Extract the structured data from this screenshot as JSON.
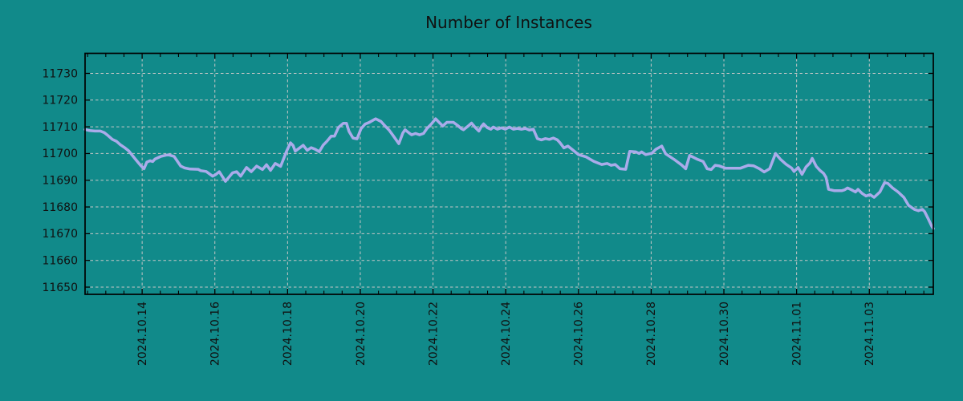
{
  "title": "Number of Instances",
  "colors": {
    "background": "#118A8A",
    "line": "#AAABEA",
    "grid": "#C6C6C6",
    "axis": "#000000",
    "text": "#111111"
  },
  "chart_data": {
    "type": "line",
    "title": "Number of Instances",
    "series_name": "instances",
    "x_unit": "days since 2024-10-14 00:00",
    "xlim": [
      -1.57,
      21.76
    ],
    "ylim": [
      11647.3,
      11737.5
    ],
    "grid": "dashed",
    "legend": "none",
    "y_ticks": [
      11650,
      11660,
      11670,
      11680,
      11690,
      11700,
      11710,
      11720,
      11730
    ],
    "x_major_tick_positions": [
      0,
      2,
      4,
      6,
      8,
      10,
      12,
      14,
      16,
      18,
      20
    ],
    "x_major_tick_labels": [
      "2024.10.14",
      "2024.10.16",
      "2024.10.18",
      "2024.10.20",
      "2024.10.22",
      "2024.10.24",
      "2024.10.26",
      "2024.10.28",
      "2024.10.30",
      "2024.11.01",
      "2024.11.03"
    ],
    "x_minor_tick_step": 0.5,
    "x": [
      -1.57,
      -1.45,
      -1.3,
      -1.15,
      -1.04,
      -0.93,
      -0.82,
      -0.71,
      -0.6,
      -0.49,
      -0.37,
      -0.28,
      -0.15,
      -0.04,
      0.05,
      0.13,
      0.22,
      0.29,
      0.35,
      0.51,
      0.66,
      0.73,
      0.88,
      1.06,
      1.17,
      1.32,
      1.54,
      1.61,
      1.76,
      1.94,
      2.01,
      2.12,
      2.29,
      2.49,
      2.6,
      2.71,
      2.87,
      3.0,
      3.15,
      3.31,
      3.42,
      3.53,
      3.66,
      3.81,
      3.97,
      4.08,
      4.15,
      4.21,
      4.32,
      4.43,
      4.54,
      4.65,
      4.76,
      4.87,
      4.98,
      5.09,
      5.2,
      5.29,
      5.4,
      5.53,
      5.62,
      5.69,
      5.8,
      5.91,
      6.02,
      6.13,
      6.24,
      6.42,
      6.57,
      6.68,
      6.79,
      6.9,
      7.06,
      7.17,
      7.23,
      7.34,
      7.41,
      7.52,
      7.63,
      7.74,
      7.83,
      7.95,
      8.07,
      8.18,
      8.27,
      8.38,
      8.56,
      8.68,
      8.78,
      8.84,
      8.95,
      9.06,
      9.17,
      9.26,
      9.33,
      9.39,
      9.5,
      9.59,
      9.66,
      9.77,
      9.88,
      9.99,
      10.1,
      10.21,
      10.32,
      10.43,
      10.54,
      10.65,
      10.76,
      10.87,
      10.98,
      11.09,
      11.2,
      11.31,
      11.42,
      11.49,
      11.6,
      11.71,
      11.82,
      11.93,
      12.0,
      12.2,
      12.42,
      12.64,
      12.79,
      12.9,
      13.01,
      13.14,
      13.3,
      13.41,
      13.58,
      13.67,
      13.74,
      13.85,
      14.02,
      14.13,
      14.29,
      14.4,
      14.62,
      14.84,
      14.95,
      15.06,
      15.28,
      15.43,
      15.54,
      15.65,
      15.76,
      15.87,
      16.05,
      16.27,
      16.45,
      16.67,
      16.82,
      16.98,
      17.11,
      17.26,
      17.42,
      17.55,
      17.71,
      17.86,
      17.93,
      18.04,
      18.15,
      18.26,
      18.37,
      18.43,
      18.54,
      18.65,
      18.74,
      18.81,
      18.88,
      19.03,
      19.25,
      19.32,
      19.4,
      19.51,
      19.62,
      19.69,
      19.8,
      19.91,
      20.02,
      20.13,
      20.29,
      20.42,
      20.51,
      20.64,
      20.79,
      20.95,
      21.08,
      21.24,
      21.35,
      21.46,
      21.52,
      21.63,
      21.72,
      21.76
    ],
    "values": [
      11709.0,
      11708.6,
      11708.4,
      11708.4,
      11707.8,
      11706.6,
      11705.3,
      11704.6,
      11703.3,
      11702.3,
      11701.0,
      11699.5,
      11697.3,
      11695.5,
      11694.3,
      11696.8,
      11697.3,
      11697.0,
      11697.9,
      11698.9,
      11699.4,
      11699.5,
      11698.9,
      11695.3,
      11694.6,
      11694.2,
      11694.1,
      11693.6,
      11693.3,
      11691.5,
      11692.0,
      11693.2,
      11689.6,
      11692.8,
      11693.2,
      11691.5,
      11694.8,
      11693.2,
      11695.3,
      11694.0,
      11695.8,
      11693.7,
      11696.3,
      11695.2,
      11700.8,
      11704.0,
      11703.0,
      11700.9,
      11702.0,
      11703.1,
      11701.2,
      11702.2,
      11701.6,
      11700.7,
      11703.2,
      11704.7,
      11706.5,
      11706.5,
      11709.8,
      11711.3,
      11711.3,
      11708.3,
      11705.8,
      11705.5,
      11709.3,
      11711.0,
      11711.6,
      11713.0,
      11712.0,
      11710.3,
      11708.8,
      11706.8,
      11703.7,
      11707.7,
      11708.9,
      11707.7,
      11707.0,
      11707.5,
      11707.0,
      11707.5,
      11709.3,
      11711.0,
      11713.0,
      11711.5,
      11710.3,
      11711.7,
      11711.7,
      11710.5,
      11709.3,
      11708.9,
      11710.1,
      11711.4,
      11709.6,
      11708.4,
      11710.1,
      11711.1,
      11709.6,
      11709.1,
      11709.9,
      11709.1,
      11709.6,
      11709.1,
      11709.9,
      11709.1,
      11709.4,
      11709.1,
      11709.4,
      11708.8,
      11709.1,
      11705.6,
      11705.1,
      11705.6,
      11705.3,
      11705.8,
      11705.1,
      11704.1,
      11702.1,
      11702.8,
      11701.6,
      11700.4,
      11699.6,
      11698.8,
      11697.1,
      11695.9,
      11696.3,
      11695.6,
      11695.9,
      11694.3,
      11694.1,
      11700.8,
      11700.6,
      11700.0,
      11700.6,
      11699.6,
      11700.1,
      11701.6,
      11702.8,
      11699.9,
      11697.9,
      11695.7,
      11694.3,
      11699.3,
      11697.8,
      11697.0,
      11694.3,
      11694.0,
      11695.6,
      11695.4,
      11694.5,
      11694.5,
      11694.5,
      11695.6,
      11695.4,
      11694.3,
      11693.1,
      11694.3,
      11700.0,
      11697.9,
      11696.0,
      11694.6,
      11693.3,
      11694.8,
      11692.2,
      11695.0,
      11696.5,
      11698.2,
      11695.2,
      11693.6,
      11692.6,
      11691.1,
      11686.6,
      11686.1,
      11686.1,
      11686.4,
      11687.1,
      11686.4,
      11685.6,
      11686.6,
      11685.1,
      11684.1,
      11684.6,
      11683.6,
      11685.6,
      11689.1,
      11688.8,
      11687.1,
      11685.6,
      11683.6,
      11680.6,
      11679.1,
      11678.6,
      11679.1,
      11678.3,
      11675.3,
      11672.7,
      11671.9
    ]
  }
}
